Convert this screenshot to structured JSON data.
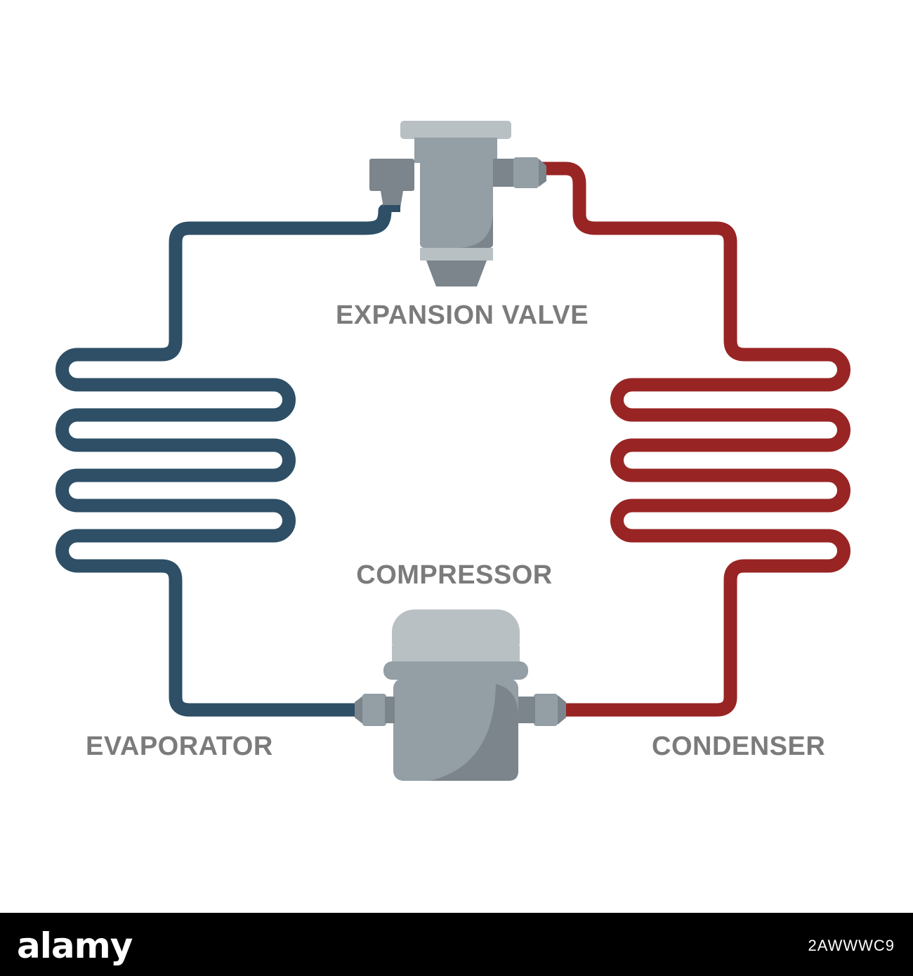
{
  "labels": {
    "expansion_valve": "EXPANSION VALVE",
    "compressor": "COMPRESSOR",
    "evaporator": "EVAPORATOR",
    "condenser": "CONDENSER"
  },
  "footer": {
    "brand": "alamy",
    "stock_id": "2AWWWC9"
  },
  "colors": {
    "cold_pipe": "#2e4f66",
    "hot_pipe": "#982524",
    "label_text": "#7b7b7b",
    "component_body": "#939ea5",
    "component_light": "#b9c0c4",
    "component_dark": "#7b858b"
  }
}
